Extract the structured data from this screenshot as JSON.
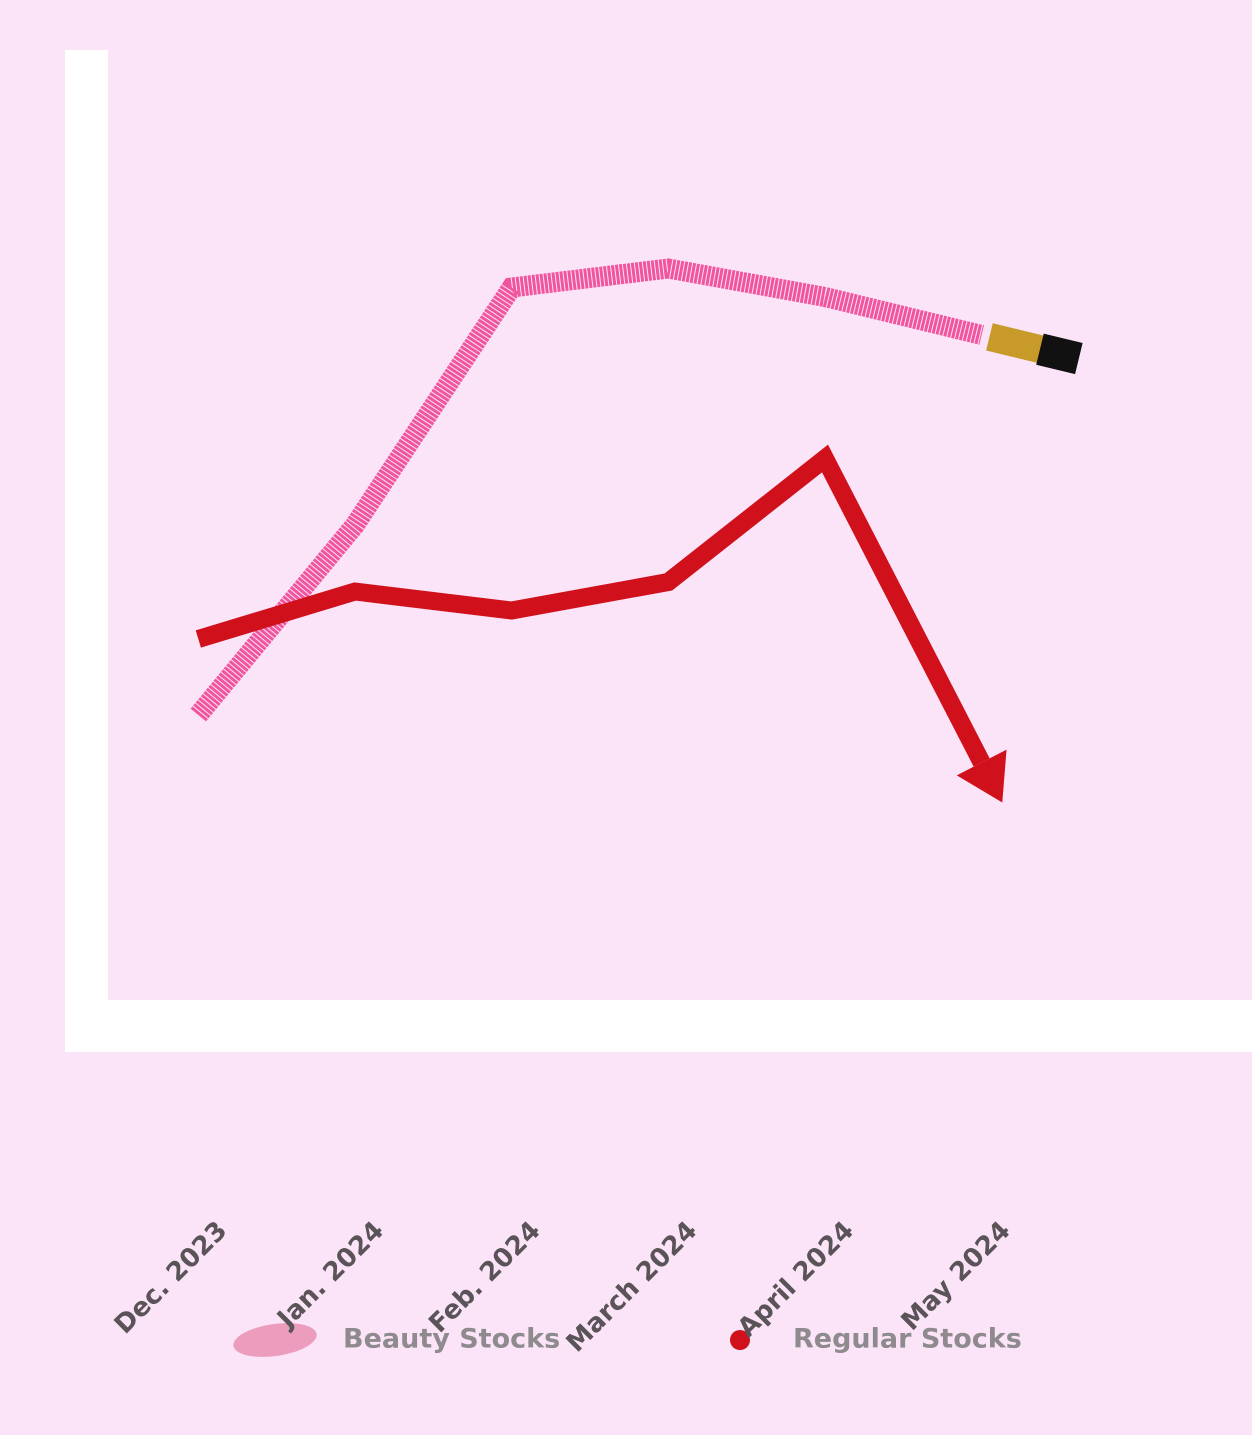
{
  "chart_data": {
    "type": "line",
    "categories": [
      "Dec. 2023",
      "Jan. 2024",
      "Feb. 2024",
      "March 2024",
      "April 2024",
      "May 2024"
    ],
    "series": [
      {
        "name": "Beauty Stocks",
        "color": "#f0559e",
        "values": [
          30,
          50,
          75,
          77,
          74,
          70
        ]
      },
      {
        "name": "Regular Stocks",
        "color": "#d0111b",
        "values": [
          38,
          43,
          41,
          44,
          57,
          25
        ]
      }
    ],
    "ylim": [
      0,
      100
    ]
  }
}
